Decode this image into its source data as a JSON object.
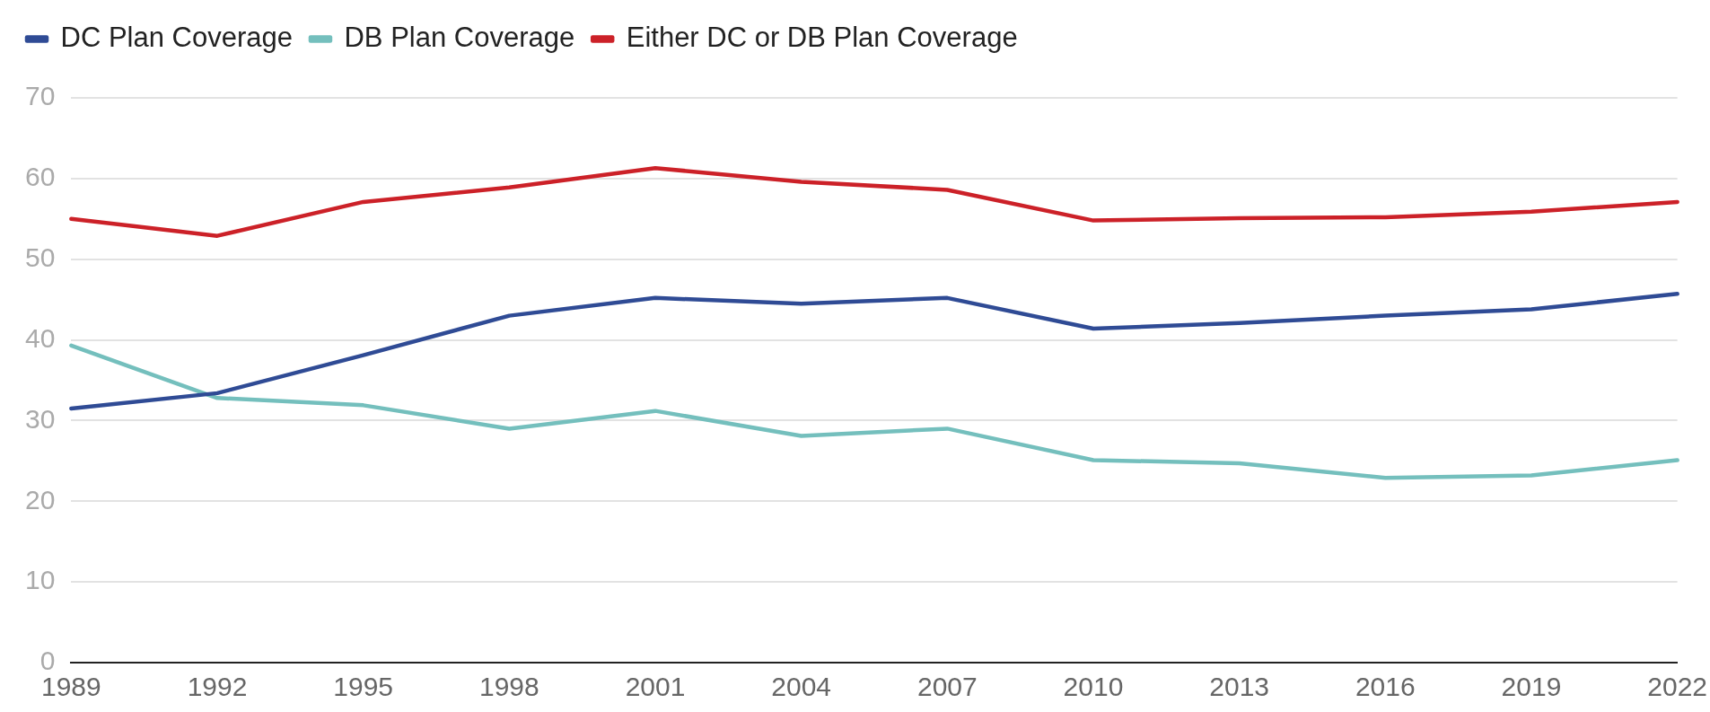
{
  "chart_data": {
    "type": "line",
    "categories": [
      "1989",
      "1992",
      "1995",
      "1998",
      "2001",
      "2004",
      "2007",
      "2010",
      "2013",
      "2016",
      "2019",
      "2022"
    ],
    "series": [
      {
        "name": "DC Plan Coverage",
        "color": "#2f4b95",
        "values": [
          31.5,
          33.4,
          38.1,
          43.0,
          45.2,
          44.5,
          45.2,
          41.4,
          42.1,
          43.0,
          43.8,
          45.7
        ]
      },
      {
        "name": "DB Plan Coverage",
        "color": "#74bfbd",
        "values": [
          39.3,
          32.8,
          31.9,
          29.0,
          31.2,
          28.1,
          29.0,
          25.1,
          24.7,
          22.9,
          23.2,
          25.1
        ]
      },
      {
        "name": "Either DC or DB Plan Coverage",
        "color": "#cc2128",
        "values": [
          55.0,
          52.9,
          57.1,
          58.9,
          61.3,
          59.6,
          58.6,
          54.8,
          55.1,
          55.2,
          55.9,
          57.1
        ]
      }
    ],
    "ylim": [
      0,
      70
    ],
    "yticks": [
      0,
      10,
      20,
      30,
      40,
      50,
      60,
      70
    ],
    "grid": "y",
    "legend": "top left",
    "marker": "none",
    "line_style": "solid"
  }
}
